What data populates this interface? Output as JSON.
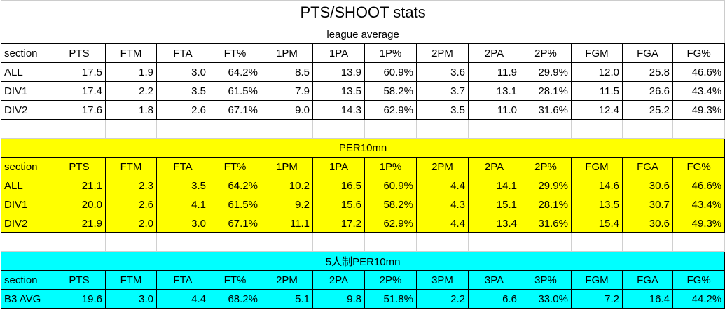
{
  "title": "PTS/SHOOT stats",
  "sections": [
    {
      "title": "league average",
      "header": [
        "section",
        "PTS",
        "FTM",
        "FTA",
        "FT%",
        "1PM",
        "1PA",
        "1P%",
        "2PM",
        "2PA",
        "2P%",
        "FGM",
        "FGA",
        "FG%"
      ],
      "rows": [
        [
          "ALL",
          "17.5",
          "1.9",
          "3.0",
          "64.2%",
          "8.5",
          "13.9",
          "60.9%",
          "3.6",
          "11.9",
          "29.9%",
          "12.0",
          "25.8",
          "46.6%"
        ],
        [
          "DIV1",
          "17.4",
          "2.2",
          "3.5",
          "61.5%",
          "7.9",
          "13.5",
          "58.2%",
          "3.7",
          "13.1",
          "28.1%",
          "11.5",
          "26.6",
          "43.4%"
        ],
        [
          "DIV2",
          "17.6",
          "1.8",
          "2.6",
          "67.1%",
          "9.0",
          "14.3",
          "62.9%",
          "3.5",
          "11.0",
          "31.6%",
          "12.4",
          "25.2",
          "49.3%"
        ]
      ]
    },
    {
      "title": "PER10mn",
      "header": [
        "section",
        "PTS",
        "FTM",
        "FTA",
        "FT%",
        "1PM",
        "1PA",
        "1P%",
        "2PM",
        "2PA",
        "2P%",
        "FGM",
        "FGA",
        "FG%"
      ],
      "rows": [
        [
          "ALL",
          "21.1",
          "2.3",
          "3.5",
          "64.2%",
          "10.2",
          "16.5",
          "60.9%",
          "4.4",
          "14.1",
          "29.9%",
          "14.6",
          "30.6",
          "46.6%"
        ],
        [
          "DIV1",
          "20.0",
          "2.6",
          "4.1",
          "61.5%",
          "9.2",
          "15.6",
          "58.2%",
          "4.3",
          "15.1",
          "28.1%",
          "13.5",
          "30.7",
          "43.4%"
        ],
        [
          "DIV2",
          "21.9",
          "2.0",
          "3.0",
          "67.1%",
          "11.1",
          "17.2",
          "62.9%",
          "4.4",
          "13.4",
          "31.6%",
          "15.4",
          "30.6",
          "49.3%"
        ]
      ]
    },
    {
      "title": "5人制PER10mn",
      "header": [
        "section",
        "PTS",
        "FTM",
        "FTA",
        "FT%",
        "2PM",
        "2PA",
        "2P%",
        "3PM",
        "3PA",
        "3P%",
        "FGM",
        "FGA",
        "FG%"
      ],
      "rows": [
        [
          "B3 AVG",
          "19.6",
          "3.0",
          "4.4",
          "68.2%",
          "5.1",
          "9.8",
          "51.8%",
          "2.2",
          "6.6",
          "33.0%",
          "7.2",
          "16.4",
          "44.2%"
        ]
      ]
    }
  ]
}
